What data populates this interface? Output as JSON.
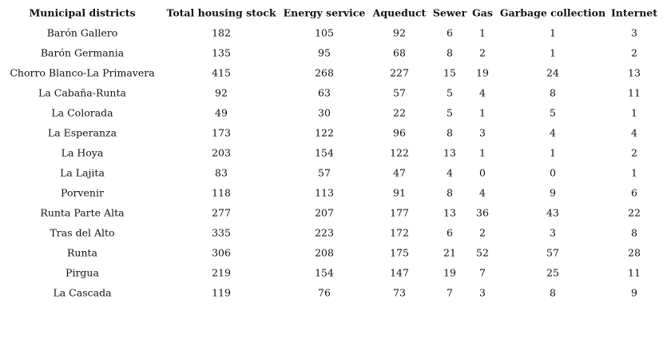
{
  "table": {
    "header": [
      "Municipal districts",
      "Total housing stock",
      "Energy service",
      "Aqueduct",
      "Sewer",
      "Gas",
      "Garbage collection",
      "Internet"
    ],
    "rows": [
      [
        "Barón Gallero",
        182,
        105,
        92,
        6,
        1,
        1,
        3
      ],
      [
        "Barón Germania",
        135,
        95,
        68,
        8,
        2,
        1,
        2
      ],
      [
        "Chorro Blanco-La Primavera",
        415,
        268,
        227,
        15,
        19,
        24,
        13
      ],
      [
        "La Cabaña-Runta",
        92,
        63,
        57,
        5,
        4,
        8,
        11
      ],
      [
        "La Colorada",
        49,
        30,
        22,
        5,
        1,
        5,
        1
      ],
      [
        "La Esperanza",
        173,
        122,
        96,
        8,
        3,
        4,
        4
      ],
      [
        "La Hoya",
        203,
        154,
        122,
        13,
        1,
        1,
        2
      ],
      [
        "La Lajita",
        83,
        57,
        47,
        4,
        0,
        0,
        1
      ],
      [
        "Porvenir",
        118,
        113,
        91,
        8,
        4,
        9,
        6
      ],
      [
        "Runta Parte Alta",
        277,
        207,
        177,
        13,
        36,
        43,
        22
      ],
      [
        "Tras del Alto",
        335,
        223,
        172,
        6,
        2,
        3,
        8
      ],
      [
        "Runta",
        306,
        208,
        175,
        21,
        52,
        57,
        28
      ],
      [
        "Pirgua",
        219,
        154,
        147,
        19,
        7,
        25,
        11
      ],
      [
        "La Cascada",
        119,
        76,
        73,
        7,
        3,
        8,
        9
      ]
    ]
  }
}
